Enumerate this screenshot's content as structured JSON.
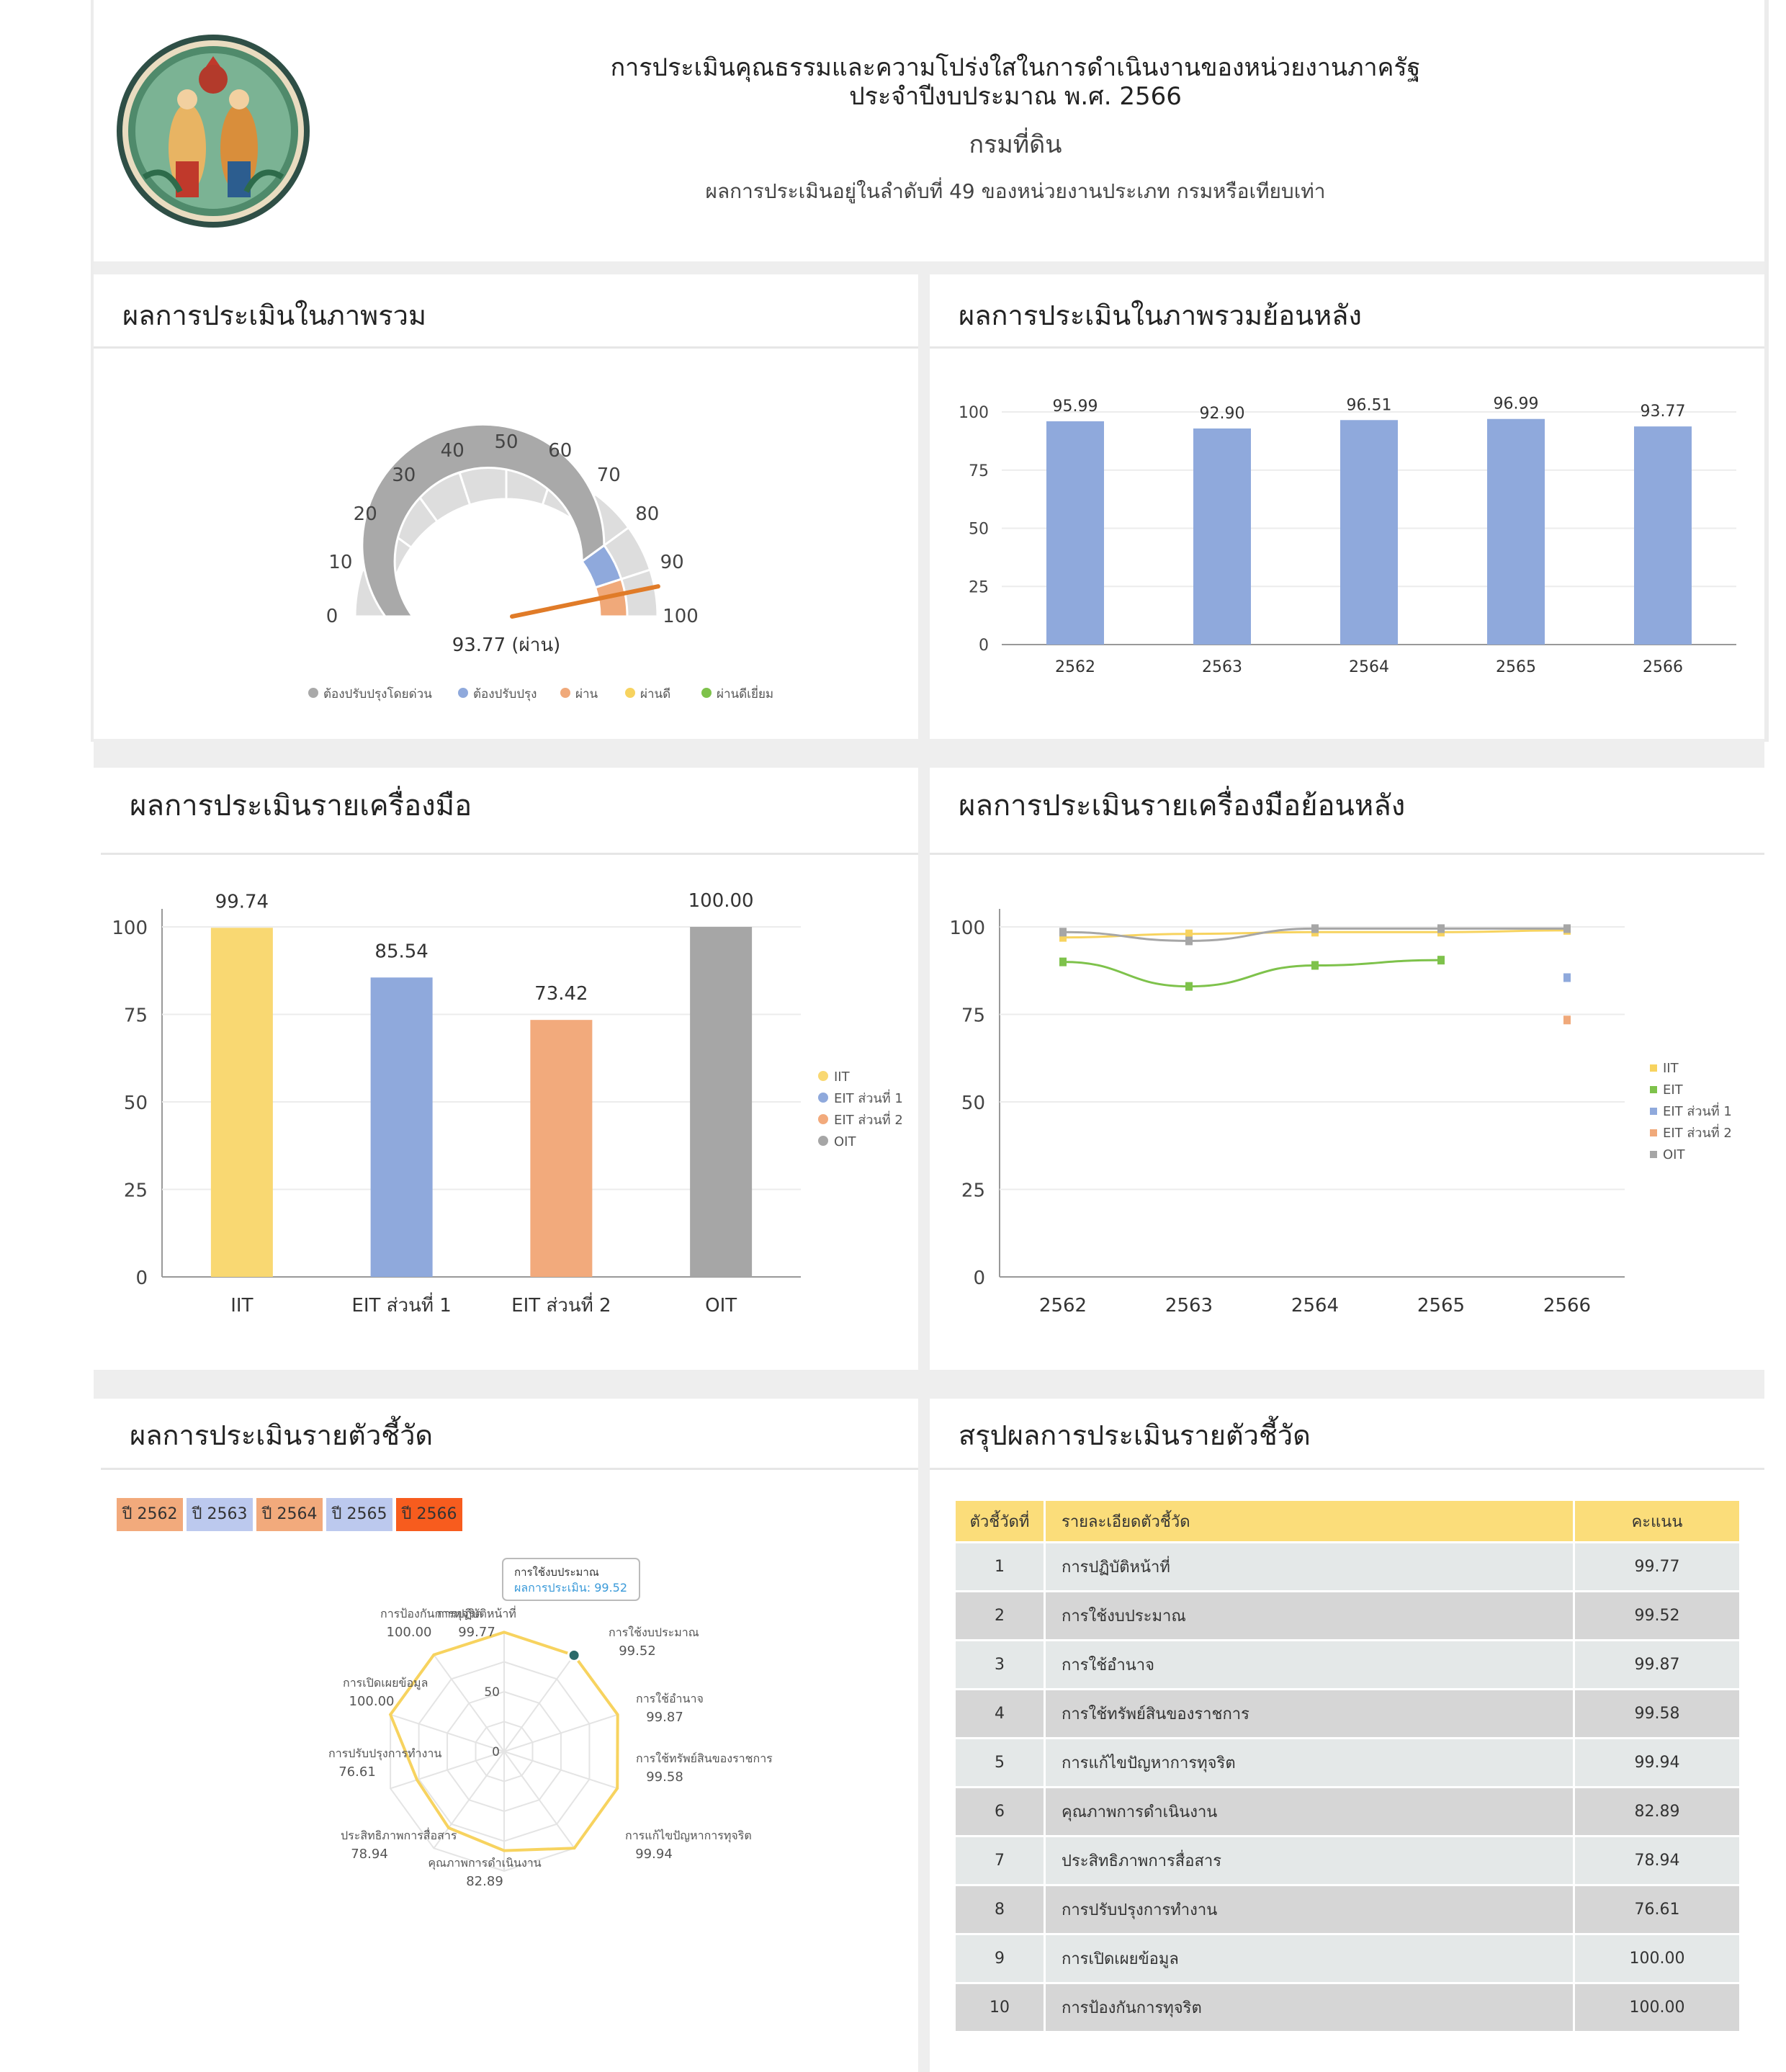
{
  "header": {
    "line1": "การประเมินคุณธรรมและความโปร่งใสในการดำเนินงานของหน่วยงานภาครัฐ",
    "line2": "ประจำปีงบประมาณ พ.ศ. 2566",
    "org": "กรมที่ดิน",
    "rank": "ผลการประเมินอยู่ในลำดับที่ 49 ของหน่วยงานประเภท กรมหรือเทียบเท่า"
  },
  "overall": {
    "title": "ผลการประเมินในภาพรวม",
    "value": 93.77,
    "value_label": "93.77 (ผ่าน)",
    "ticks": [
      "0",
      "10",
      "20",
      "30",
      "40",
      "50",
      "60",
      "70",
      "80",
      "90",
      "100"
    ],
    "legend": [
      {
        "label": "ต้องปรับปรุงโดยด่วน",
        "color": "#a9a9a9"
      },
      {
        "label": "ต้องปรับปรุง",
        "color": "#8fa9dc"
      },
      {
        "label": "ผ่าน",
        "color": "#f0a97a"
      },
      {
        "label": "ผ่านดี",
        "color": "#f7d35f"
      },
      {
        "label": "ผ่านดีเยี่ยม",
        "color": "#7ec24b"
      }
    ]
  },
  "history": {
    "title": "ผลการประเมินในภาพรวมย้อนหลัง",
    "chart_data": {
      "type": "bar",
      "categories": [
        "2562",
        "2563",
        "2564",
        "2565",
        "2566"
      ],
      "values": [
        95.99,
        92.9,
        96.51,
        96.99,
        93.77
      ],
      "value_labels": [
        "95.99",
        "92.90",
        "96.51",
        "96.99",
        "93.77"
      ],
      "yticks": [
        "0",
        "25",
        "50",
        "75",
        "100"
      ],
      "ylim": [
        0,
        100
      ],
      "color": "#8fa9dc"
    }
  },
  "tools": {
    "title": "ผลการประเมินรายเครื่องมือ",
    "chart_data": {
      "type": "bar",
      "categories": [
        "IIT",
        "EIT ส่วนที่ 1",
        "EIT ส่วนที่ 2",
        "OIT"
      ],
      "values": [
        99.74,
        85.54,
        73.42,
        100.0
      ],
      "value_labels": [
        "99.74",
        "85.54",
        "73.42",
        "100.00"
      ],
      "colors": [
        "#f9d872",
        "#8fa9dc",
        "#f2aa7c",
        "#a6a6a6"
      ],
      "yticks": [
        "0",
        "25",
        "50",
        "75",
        "100"
      ],
      "ylim": [
        0,
        100
      ],
      "legend": [
        "IIT",
        "EIT ส่วนที่ 1",
        "EIT ส่วนที่ 2",
        "OIT"
      ]
    }
  },
  "tools_history": {
    "title": "ผลการประเมินรายเครื่องมือย้อนหลัง",
    "chart_data": {
      "type": "line",
      "x": [
        "2562",
        "2563",
        "2564",
        "2565",
        "2566"
      ],
      "yticks": [
        "0",
        "25",
        "50",
        "75",
        "100"
      ],
      "ylim": [
        0,
        100
      ],
      "series": [
        {
          "name": "IIT",
          "color": "#f7d35f",
          "values": [
            97,
            98,
            98.5,
            98.5,
            99
          ]
        },
        {
          "name": "EIT",
          "color": "#7ec24b",
          "values": [
            90,
            83,
            89,
            90.5,
            null
          ]
        },
        {
          "name": "EIT ส่วนที่ 1",
          "color": "#8fa9dc",
          "values": [
            null,
            null,
            null,
            null,
            85.5
          ]
        },
        {
          "name": "EIT ส่วนที่ 2",
          "color": "#f0a97a",
          "values": [
            null,
            null,
            null,
            null,
            73.4
          ]
        },
        {
          "name": "OIT",
          "color": "#a6a6a6",
          "values": [
            98.5,
            96,
            99.5,
            99.5,
            99.5
          ]
        }
      ]
    }
  },
  "indicators": {
    "title": "ผลการประเมินรายตัวชี้วัด",
    "year_buttons": [
      {
        "label": "ปี 2562",
        "color": "#f2aa7c"
      },
      {
        "label": "ปี 2563",
        "color": "#bcc9ee"
      },
      {
        "label": "ปี 2564",
        "color": "#f2aa7c"
      },
      {
        "label": "ปี 2565",
        "color": "#bcc9ee"
      },
      {
        "label": "ปี 2566",
        "color": "#f75c1e"
      }
    ],
    "radar_ticks": [
      "0",
      "50"
    ],
    "tooltip": "ผลการประเมิน: 99.52",
    "tooltip_title": "การใช้งบประมาณ",
    "chart_data": {
      "type": "radar",
      "labels": [
        "การปฏิบัติหน้าที่",
        "การใช้งบประมาณ",
        "การใช้อำนาจ",
        "การใช้ทรัพย์สินของราชการ",
        "การแก้ไขปัญหาการทุจริต",
        "คุณภาพการดำเนินงาน",
        "ประสิทธิภาพการสื่อสาร",
        "การปรับปรุงการทำงาน",
        "การเปิดเผยข้อมูล",
        "การป้องกันการทุจริต"
      ],
      "values": [
        99.77,
        99.52,
        99.87,
        99.58,
        99.94,
        82.89,
        78.94,
        76.61,
        100.0,
        100.0
      ],
      "value_labels": [
        "99.77",
        "99.52",
        "99.87",
        "99.58",
        "99.94",
        "82.89",
        "78.94",
        "76.61",
        "100.00",
        "100.00"
      ],
      "rlim": [
        0,
        100
      ],
      "color": "#f7d35f"
    }
  },
  "summary": {
    "title": "สรุปผลการประเมินรายตัวชี้วัด",
    "columns": [
      "ตัวชี้วัดที่",
      "รายละเอียดตัวชี้วัด",
      "คะแนน"
    ],
    "rows": [
      {
        "no": "1",
        "desc": "การปฏิบัติหน้าที่",
        "score": "99.77"
      },
      {
        "no": "2",
        "desc": "การใช้งบประมาณ",
        "score": "99.52"
      },
      {
        "no": "3",
        "desc": "การใช้อำนาจ",
        "score": "99.87"
      },
      {
        "no": "4",
        "desc": "การใช้ทรัพย์สินของราชการ",
        "score": "99.58"
      },
      {
        "no": "5",
        "desc": "การแก้ไขปัญหาการทุจริต",
        "score": "99.94"
      },
      {
        "no": "6",
        "desc": "คุณภาพการดำเนินงาน",
        "score": "82.89"
      },
      {
        "no": "7",
        "desc": "ประสิทธิภาพการสื่อสาร",
        "score": "78.94"
      },
      {
        "no": "8",
        "desc": "การปรับปรุงการทำงาน",
        "score": "76.61"
      },
      {
        "no": "9",
        "desc": "การเปิดเผยข้อมูล",
        "score": "100.00"
      },
      {
        "no": "10",
        "desc": "การป้องกันการทุจริต",
        "score": "100.00"
      }
    ]
  }
}
